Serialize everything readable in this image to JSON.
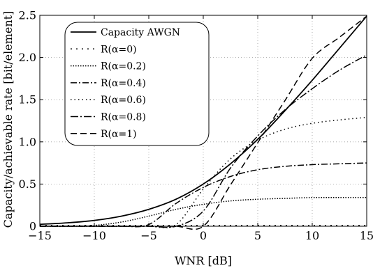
{
  "chart_data": {
    "type": "line",
    "xlabel": "WNR [dB]",
    "ylabel": "Capacity/achievable rate [bit/element]",
    "xlim": [
      -15,
      15
    ],
    "ylim": [
      0,
      2.5
    ],
    "xticks": [
      -15,
      -10,
      -5,
      0,
      5,
      10,
      15
    ],
    "yticks": [
      0,
      0.5,
      1.0,
      1.5,
      2.0,
      2.5
    ],
    "xtick_labels": [
      "−15",
      "−10",
      "−5",
      "0",
      "5",
      "10",
      "15"
    ],
    "ytick_labels": [
      "0",
      "0.5",
      "1.0",
      "1.5",
      "2.0",
      "2.5"
    ],
    "grid": true,
    "legend_position": "top-left",
    "x": [
      -15,
      -12.5,
      -10,
      -7.5,
      -5,
      -2.5,
      0,
      2.5,
      5,
      7.5,
      10,
      12.5,
      15
    ],
    "series": [
      {
        "name": "Capacity AWGN",
        "dash": "solid",
        "values": [
          0.023,
          0.04,
          0.069,
          0.12,
          0.2,
          0.32,
          0.5,
          0.74,
          1.03,
          1.37,
          1.73,
          2.11,
          2.49
        ]
      },
      {
        "name": "R(α=0)",
        "dash": "dot-sparse",
        "values": [
          0.01,
          0.01,
          0.01,
          0.01,
          0.01,
          0.01,
          0.01,
          0.01,
          0.01,
          0.01,
          0.01,
          0.01,
          0.01
        ]
      },
      {
        "name": "R(α=0.2)",
        "dash": "dot-dense",
        "values": [
          0.0,
          0.0,
          0.01,
          0.05,
          0.12,
          0.2,
          0.26,
          0.3,
          0.32,
          0.33,
          0.34,
          0.34,
          0.34
        ]
      },
      {
        "name": "R(α=0.4)",
        "dash": "dash-dot",
        "values": [
          0.0,
          0.0,
          0.0,
          0.0,
          0.02,
          0.27,
          0.46,
          0.59,
          0.67,
          0.71,
          0.73,
          0.74,
          0.75
        ]
      },
      {
        "name": "R(α=0.6)",
        "dash": "dot-mid",
        "values": [
          0.0,
          0.0,
          0.0,
          0.0,
          0.0,
          0.02,
          0.44,
          0.8,
          1.02,
          1.15,
          1.22,
          1.26,
          1.29
        ]
      },
      {
        "name": "R(α=0.8)",
        "dash": "dash-dot-long",
        "values": [
          0.0,
          0.0,
          0.0,
          0.0,
          0.0,
          0.0,
          0.18,
          0.69,
          1.07,
          1.38,
          1.63,
          1.85,
          2.03
        ]
      },
      {
        "name": "R(α=1)",
        "dash": "dash",
        "values": [
          0.0,
          0.0,
          0.0,
          0.0,
          0.0,
          0.0,
          0.0,
          0.49,
          0.99,
          1.49,
          1.99,
          2.24,
          2.49
        ]
      }
    ]
  }
}
